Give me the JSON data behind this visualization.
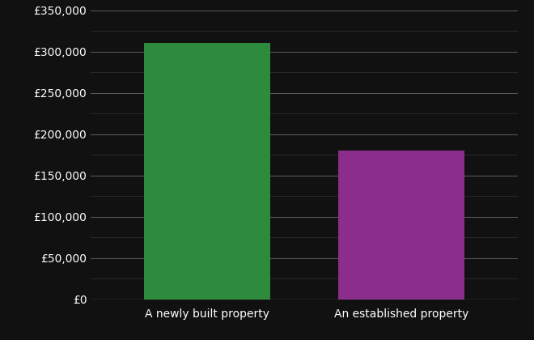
{
  "categories": [
    "A newly built property",
    "An established property"
  ],
  "values": [
    310000,
    180000
  ],
  "bar_colors": [
    "#2e8b3e",
    "#8b2d8b"
  ],
  "background_color": "#111111",
  "text_color": "#ffffff",
  "major_grid_color": "#555555",
  "minor_grid_color": "#333333",
  "ylim": [
    0,
    350000
  ],
  "yticks": [
    0,
    50000,
    100000,
    150000,
    200000,
    250000,
    300000,
    350000
  ],
  "ytick_labels": [
    "£0",
    "£50,000",
    "£100,000",
    "£150,000",
    "£200,000",
    "£250,000",
    "£300,000",
    "£350,000"
  ],
  "tick_fontsize": 10,
  "label_fontsize": 10,
  "bar_width": 0.65,
  "figsize": [
    6.6,
    4.2
  ],
  "dpi": 100
}
